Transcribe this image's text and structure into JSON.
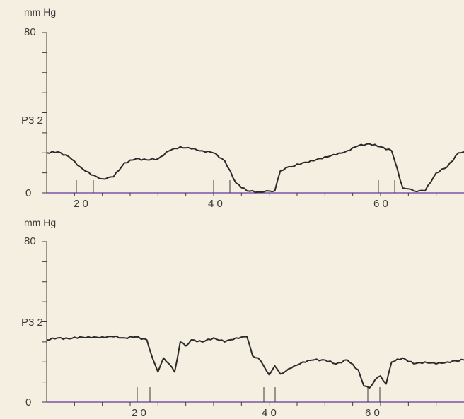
{
  "chart_data": [
    {
      "type": "line",
      "unit_label": "mm Hg",
      "series_label": "P3 2",
      "ylim": [
        0,
        80
      ],
      "yticks": [
        0,
        80
      ],
      "x_marker_labels": [
        "2 0",
        "4 0",
        "6 0"
      ],
      "x_markers": [
        20,
        40,
        60
      ],
      "xlim": [
        0,
        75
      ],
      "x": [
        0,
        2,
        4,
        6,
        8,
        10,
        12,
        14,
        16,
        18,
        20,
        22,
        24,
        26,
        28,
        30,
        32,
        34,
        36,
        38,
        39,
        40,
        41,
        42,
        43,
        44,
        46,
        48,
        50,
        52,
        54,
        56,
        58,
        60,
        62,
        64,
        65,
        66,
        68,
        70,
        72,
        74,
        75
      ],
      "y": [
        20,
        20.5,
        18,
        13,
        9,
        7,
        8,
        15,
        17,
        16.5,
        17,
        21,
        23,
        22,
        21,
        20,
        16,
        5,
        1,
        0.5,
        0.5,
        1,
        1,
        11,
        12.5,
        13,
        15,
        16,
        18,
        19,
        21,
        23.5,
        24.5,
        23,
        21,
        2.5,
        2,
        1,
        1,
        10,
        13,
        20,
        20.5
      ]
    },
    {
      "type": "line",
      "unit_label": "mm Hg",
      "series_label": "P3 2",
      "ylim": [
        0,
        80
      ],
      "yticks": [
        0,
        80
      ],
      "x_marker_labels": [
        "2 0",
        "4 0",
        "6 0"
      ],
      "x_markers": [
        20,
        40,
        60
      ],
      "xlim": [
        0,
        75
      ],
      "x": [
        0,
        2,
        4,
        6,
        8,
        10,
        12,
        14,
        16,
        18,
        19,
        20,
        21,
        22,
        23,
        24,
        25,
        26,
        28,
        30,
        32,
        34,
        36,
        37,
        38,
        39,
        40,
        41,
        42,
        44,
        46,
        48,
        50,
        52,
        54,
        56,
        57,
        58,
        59,
        60,
        61,
        62,
        64,
        66,
        68,
        70,
        72,
        75
      ],
      "y": [
        31,
        32,
        31.5,
        32.5,
        32,
        32.5,
        32.5,
        32,
        32.5,
        31,
        22,
        15,
        22,
        19,
        15,
        30,
        28,
        31,
        30,
        32,
        30,
        32,
        32.5,
        23,
        22,
        18,
        13.5,
        18,
        14,
        17,
        20,
        21,
        21,
        19,
        21,
        16,
        8,
        7,
        11,
        13,
        9,
        20,
        22,
        19,
        20,
        19,
        20,
        21
      ]
    }
  ]
}
